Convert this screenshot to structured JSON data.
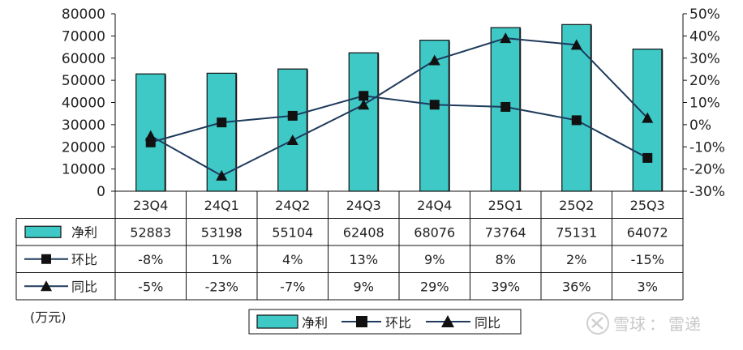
{
  "chart_data": {
    "type": "bar",
    "categories": [
      "23Q4",
      "24Q1",
      "24Q2",
      "24Q3",
      "24Q4",
      "25Q1",
      "25Q2",
      "25Q3"
    ],
    "series": [
      {
        "name": "净利",
        "kind": "bar",
        "axis": "left",
        "values": [
          52883,
          53198,
          55104,
          62408,
          68076,
          73764,
          75131,
          64072
        ],
        "labels": [
          "52883",
          "53198",
          "55104",
          "62408",
          "68076",
          "73764",
          "75131",
          "64072"
        ]
      },
      {
        "name": "环比",
        "kind": "line",
        "marker": "square",
        "axis": "right",
        "values": [
          -8,
          1,
          4,
          13,
          9,
          8,
          2,
          -15
        ],
        "labels": [
          "-8%",
          "1%",
          "4%",
          "13%",
          "9%",
          "8%",
          "2%",
          "-15%"
        ]
      },
      {
        "name": "同比",
        "kind": "line",
        "marker": "triangle",
        "axis": "right",
        "values": [
          -5,
          -23,
          -7,
          9,
          29,
          39,
          36,
          3
        ],
        "labels": [
          "-5%",
          "-23%",
          "-7%",
          "9%",
          "29%",
          "39%",
          "36%",
          "3%"
        ]
      }
    ],
    "y_left": {
      "ticks": [
        "80000",
        "70000",
        "60000",
        "50000",
        "40000",
        "30000",
        "20000",
        "10000",
        "0"
      ],
      "ylim": [
        0,
        80000
      ]
    },
    "y_right": {
      "ticks": [
        "50%",
        "40%",
        "30%",
        "20%",
        "10%",
        "0%",
        "-10%",
        "-20%",
        "-30%"
      ],
      "ylim": [
        -30,
        50
      ]
    },
    "unit_label": "(万元)",
    "legend": {
      "placement": "bottom-center",
      "items": [
        "净利",
        "环比",
        "同比"
      ]
    },
    "data_table": true,
    "grid": false,
    "colors": {
      "bar": "#3ec8c6",
      "line": "#1f3a5c",
      "marker": "#111111"
    }
  },
  "watermark": {
    "brand": "雪球",
    "separator": "：",
    "author": "雷递"
  }
}
